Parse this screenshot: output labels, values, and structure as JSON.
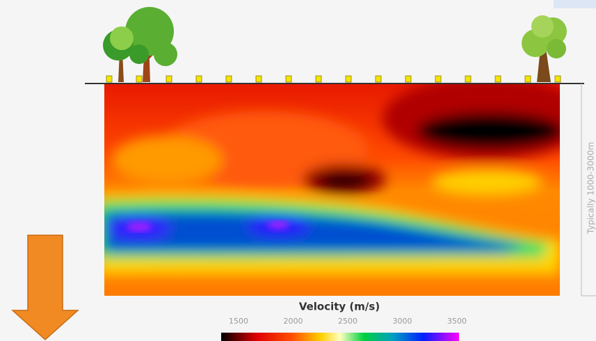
{
  "section": {
    "axis_label": "Velocity (m/s)",
    "colorbar_ticks": [
      1500,
      2000,
      2500,
      3000,
      3500
    ],
    "depth_note": "Typically 1000-3000m"
  }
}
